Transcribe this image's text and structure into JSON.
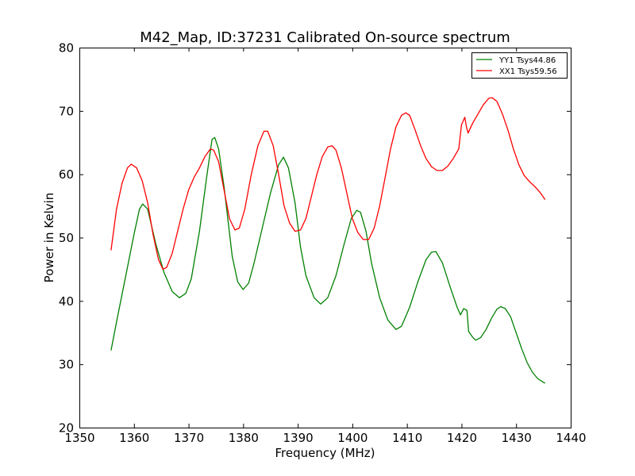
{
  "chart_data": {
    "type": "line",
    "title": "M42_Map, ID:37231 Calibrated On-source spectrum",
    "xlabel": "Frequency (MHz)",
    "ylabel": "Power in Kelvin",
    "xlim": [
      1350,
      1440
    ],
    "ylim": [
      20,
      80
    ],
    "xticks": [
      1350,
      1360,
      1370,
      1380,
      1390,
      1400,
      1410,
      1420,
      1430,
      1440
    ],
    "yticks": [
      20,
      30,
      40,
      50,
      60,
      70,
      80
    ],
    "grid": false,
    "legend_position": "top-right",
    "series": [
      {
        "name": "YY1 Tsys44.86",
        "color": "#008000",
        "points": [
          [
            1355.8,
            32.2
          ],
          [
            1357.0,
            37.5
          ],
          [
            1358.5,
            44.0
          ],
          [
            1360.0,
            50.5
          ],
          [
            1361.0,
            54.5
          ],
          [
            1361.6,
            55.3
          ],
          [
            1362.5,
            54.5
          ],
          [
            1364.0,
            49.0
          ],
          [
            1365.5,
            44.5
          ],
          [
            1367.0,
            41.5
          ],
          [
            1368.3,
            40.5
          ],
          [
            1369.5,
            41.2
          ],
          [
            1370.5,
            43.5
          ],
          [
            1372.0,
            51.0
          ],
          [
            1373.3,
            59.5
          ],
          [
            1374.3,
            65.5
          ],
          [
            1374.8,
            65.8
          ],
          [
            1375.5,
            64.0
          ],
          [
            1376.5,
            58.0
          ],
          [
            1378.0,
            47.0
          ],
          [
            1379.0,
            43.0
          ],
          [
            1380.0,
            41.8
          ],
          [
            1381.0,
            42.8
          ],
          [
            1382.0,
            46.0
          ],
          [
            1383.5,
            51.5
          ],
          [
            1385.0,
            57.0
          ],
          [
            1386.5,
            61.5
          ],
          [
            1387.4,
            62.7
          ],
          [
            1388.3,
            61.0
          ],
          [
            1389.5,
            55.5
          ],
          [
            1390.5,
            48.5
          ],
          [
            1391.5,
            44.0
          ],
          [
            1393.0,
            40.5
          ],
          [
            1394.2,
            39.5
          ],
          [
            1395.5,
            40.5
          ],
          [
            1397.0,
            44.0
          ],
          [
            1398.5,
            49.0
          ],
          [
            1399.8,
            53.0
          ],
          [
            1400.8,
            54.3
          ],
          [
            1401.5,
            54.0
          ],
          [
            1402.5,
            51.0
          ],
          [
            1403.5,
            46.0
          ],
          [
            1405.0,
            40.5
          ],
          [
            1406.5,
            37.0
          ],
          [
            1408.0,
            35.5
          ],
          [
            1409.0,
            36.0
          ],
          [
            1410.5,
            39.0
          ],
          [
            1412.0,
            43.0
          ],
          [
            1413.5,
            46.5
          ],
          [
            1414.5,
            47.7
          ],
          [
            1415.3,
            47.8
          ],
          [
            1416.5,
            46.0
          ],
          [
            1418.0,
            42.0
          ],
          [
            1419.2,
            39.0
          ],
          [
            1419.8,
            37.8
          ],
          [
            1420.4,
            38.8
          ],
          [
            1421.0,
            38.5
          ],
          [
            1421.3,
            35.2
          ],
          [
            1422.0,
            34.3
          ],
          [
            1422.6,
            33.8
          ],
          [
            1423.5,
            34.2
          ],
          [
            1424.5,
            35.5
          ],
          [
            1425.5,
            37.3
          ],
          [
            1426.5,
            38.7
          ],
          [
            1427.2,
            39.1
          ],
          [
            1428.0,
            38.8
          ],
          [
            1429.0,
            37.5
          ],
          [
            1430.0,
            35.0
          ],
          [
            1431.0,
            32.5
          ],
          [
            1432.0,
            30.3
          ],
          [
            1433.0,
            28.7
          ],
          [
            1434.0,
            27.7
          ],
          [
            1435.3,
            27.0
          ]
        ]
      },
      {
        "name": "XX1 Tsys59.56",
        "color": "#ff0000",
        "points": [
          [
            1355.8,
            48.0
          ],
          [
            1356.8,
            54.5
          ],
          [
            1357.8,
            58.5
          ],
          [
            1358.8,
            61.0
          ],
          [
            1359.5,
            61.6
          ],
          [
            1360.5,
            61.0
          ],
          [
            1361.5,
            59.0
          ],
          [
            1362.5,
            55.5
          ],
          [
            1363.5,
            50.5
          ],
          [
            1364.5,
            46.5
          ],
          [
            1365.3,
            45.0
          ],
          [
            1366.0,
            45.3
          ],
          [
            1367.0,
            47.5
          ],
          [
            1368.0,
            51.0
          ],
          [
            1369.0,
            54.5
          ],
          [
            1370.0,
            57.5
          ],
          [
            1371.0,
            59.5
          ],
          [
            1372.0,
            61.0
          ],
          [
            1373.0,
            62.8
          ],
          [
            1374.0,
            64.0
          ],
          [
            1374.6,
            63.8
          ],
          [
            1375.5,
            62.0
          ],
          [
            1376.5,
            57.5
          ],
          [
            1377.5,
            53.0
          ],
          [
            1378.5,
            51.2
          ],
          [
            1379.3,
            51.5
          ],
          [
            1380.3,
            54.5
          ],
          [
            1381.5,
            60.0
          ],
          [
            1382.7,
            64.5
          ],
          [
            1383.8,
            66.8
          ],
          [
            1384.5,
            66.8
          ],
          [
            1385.5,
            64.5
          ],
          [
            1386.5,
            60.0
          ],
          [
            1387.5,
            55.0
          ],
          [
            1388.5,
            52.3
          ],
          [
            1389.5,
            51.0
          ],
          [
            1390.5,
            51.2
          ],
          [
            1391.5,
            53.0
          ],
          [
            1392.5,
            56.5
          ],
          [
            1393.5,
            60.0
          ],
          [
            1394.5,
            62.8
          ],
          [
            1395.5,
            64.3
          ],
          [
            1396.3,
            64.5
          ],
          [
            1397.0,
            63.8
          ],
          [
            1398.0,
            61.0
          ],
          [
            1399.0,
            57.0
          ],
          [
            1400.0,
            53.0
          ],
          [
            1401.0,
            50.8
          ],
          [
            1402.0,
            49.7
          ],
          [
            1403.0,
            49.7
          ],
          [
            1404.0,
            51.5
          ],
          [
            1405.0,
            55.0
          ],
          [
            1406.0,
            59.5
          ],
          [
            1407.0,
            64.0
          ],
          [
            1408.0,
            67.5
          ],
          [
            1409.0,
            69.3
          ],
          [
            1409.8,
            69.7
          ],
          [
            1410.5,
            69.3
          ],
          [
            1411.5,
            67.0
          ],
          [
            1412.5,
            64.5
          ],
          [
            1413.5,
            62.5
          ],
          [
            1414.5,
            61.2
          ],
          [
            1415.5,
            60.6
          ],
          [
            1416.5,
            60.6
          ],
          [
            1417.5,
            61.3
          ],
          [
            1418.5,
            62.5
          ],
          [
            1419.5,
            64.0
          ],
          [
            1420.0,
            67.8
          ],
          [
            1420.6,
            69.0
          ],
          [
            1420.9,
            67.5
          ],
          [
            1421.2,
            66.5
          ],
          [
            1422.0,
            68.0
          ],
          [
            1423.0,
            69.5
          ],
          [
            1424.0,
            71.0
          ],
          [
            1425.0,
            72.0
          ],
          [
            1425.6,
            72.1
          ],
          [
            1426.5,
            71.5
          ],
          [
            1427.5,
            69.5
          ],
          [
            1428.5,
            67.0
          ],
          [
            1429.5,
            64.0
          ],
          [
            1430.5,
            61.5
          ],
          [
            1431.5,
            59.8
          ],
          [
            1432.5,
            58.8
          ],
          [
            1433.5,
            58.0
          ],
          [
            1434.5,
            57.0
          ],
          [
            1435.3,
            56.0
          ]
        ]
      }
    ]
  }
}
